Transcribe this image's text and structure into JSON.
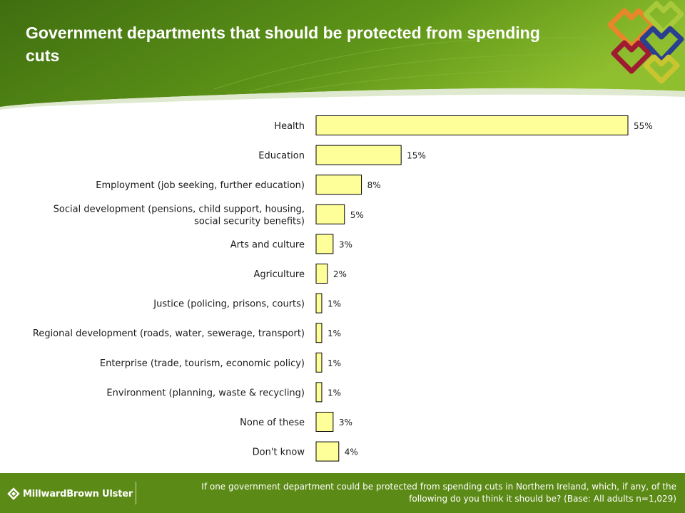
{
  "header": {
    "title": "Government departments that should be protected from spending cuts",
    "colors": {
      "dark_green": "#3f6e10",
      "light_green": "#8fbf2e"
    }
  },
  "logo": {
    "icon": "hearts-logo-icon",
    "colors": [
      "#e8872a",
      "#a8c93a",
      "#9e1b32",
      "#2a3f8f",
      "#c9c530"
    ]
  },
  "chart_data": {
    "type": "bar",
    "orientation": "horizontal",
    "categories": [
      "Health",
      "Education",
      "Employment (job seeking, further education)",
      "Social development (pensions, child support, housing, social security benefits)",
      "Arts and culture",
      "Agriculture",
      "Justice (policing, prisons, courts)",
      "Regional development (roads, water, sewerage, transport)",
      "Enterprise (trade, tourism, economic policy)",
      "Environment (planning, waste & recycling)",
      "None of these",
      "Don't know"
    ],
    "category_lines": [
      [
        "Health"
      ],
      [
        "Education"
      ],
      [
        "Employment (job seeking, further education)"
      ],
      [
        "Social development (pensions, child support, housing,",
        "social security benefits)"
      ],
      [
        "Arts and culture"
      ],
      [
        "Agriculture"
      ],
      [
        "Justice (policing, prisons, courts)"
      ],
      [
        "Regional development (roads, water, sewerage, transport)"
      ],
      [
        "Enterprise (trade, tourism, economic policy)"
      ],
      [
        "Environment (planning, waste & recycling)"
      ],
      [
        "None of these"
      ],
      [
        "Don't know"
      ]
    ],
    "values": [
      55,
      15,
      8,
      5,
      3,
      2,
      1,
      1,
      1,
      1,
      3,
      4
    ],
    "value_labels": [
      "55%",
      "15%",
      "8%",
      "5%",
      "3%",
      "2%",
      "1%",
      "1%",
      "1%",
      "1%",
      "3%",
      "4%"
    ],
    "xlim": [
      0,
      55
    ],
    "bar_color": "#ffff99",
    "grid": false,
    "legend": "none"
  },
  "footer": {
    "brand": "MillwardBrown Ulster",
    "brand_icon": "millward-brown-icon",
    "footnote": "If one government department could be protected from spending cuts in Northern Ireland, which, if any, of the following do you think it should be? (Base: All adults n=1,029)"
  }
}
